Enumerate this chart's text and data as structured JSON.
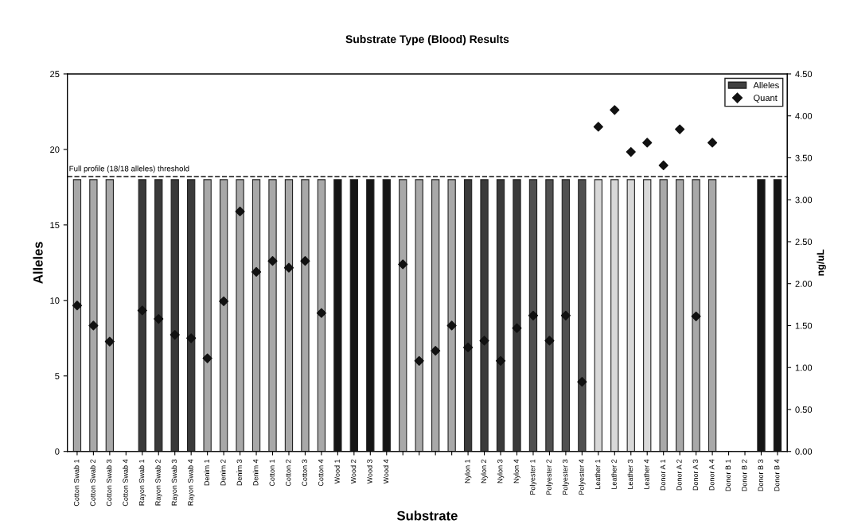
{
  "chart_data": {
    "type": "bar",
    "title": "Substrate Type (Blood) Results",
    "xlabel": "Substrate",
    "ylabel": "Alleles",
    "y2label": "ng/uL",
    "categories": [
      "Cotton Swab 1",
      "Cotton Swab 2",
      "Cotton Swab 3",
      "Cotton Swab 4",
      "Rayon Swab 1",
      "Rayon Swab 2",
      "Rayon Swab 3",
      "Rayon Swab 4",
      "Denim 1",
      "Denim 2",
      "Denim 3",
      "Denim 4",
      "Cotton 1",
      "Cotton 2",
      "Cotton 3",
      "Cotton 4",
      "Wood 1",
      "Wood 2",
      "Wood 3",
      "Wood 4",
      null,
      null,
      null,
      null,
      "Nylon 1",
      "Nylon 2",
      "Nylon 3",
      "Nylon 4",
      "Polyester 1",
      "Polyester 2",
      "Polyester 3",
      "Polyester 4",
      "Leather 1",
      "Leather 2",
      "Leather 3",
      "Leather 4",
      "Donor A 1",
      "Donor A 2",
      "Donor A 3",
      "Donor A 4",
      "Donor B 1",
      "Donor B 2",
      "Donor B 3",
      "Donor B 4"
    ],
    "series": [
      {
        "name": "Alleles",
        "color": "#404040",
        "colors": [
          "#a8a8a8",
          "#a8a8a8",
          "#a8a8a8",
          "#a8a8a8",
          "#3a3a3a",
          "#3a3a3a",
          "#3a3a3a",
          "#3a3a3a",
          "#a8a8a8",
          "#a8a8a8",
          "#a8a8a8",
          "#a8a8a8",
          "#a8a8a8",
          "#a8a8a8",
          "#a8a8a8",
          "#a8a8a8",
          "#151515",
          "#151515",
          "#151515",
          "#151515",
          "#a8a8a8",
          "#a8a8a8",
          "#a8a8a8",
          "#a8a8a8",
          "#3a3a3a",
          "#3a3a3a",
          "#3a3a3a",
          "#3a3a3a",
          "#505050",
          "#505050",
          "#505050",
          "#505050",
          "#d8d8d8",
          "#d8d8d8",
          "#d8d8d8",
          "#d8d8d8",
          "#a8a8a8",
          "#a8a8a8",
          "#a8a8a8",
          "#a8a8a8",
          "#151515",
          "#151515",
          "#151515",
          "#151515"
        ],
        "values": [
          18,
          18,
          18,
          0,
          18,
          18,
          18,
          18,
          18,
          18,
          18,
          18,
          18,
          18,
          18,
          18,
          18,
          18,
          18,
          18,
          18,
          18,
          18,
          18,
          18,
          18,
          18,
          18,
          18,
          18,
          18,
          18,
          18,
          18,
          18,
          18,
          18,
          18,
          18,
          18,
          0,
          0,
          18,
          18
        ]
      },
      {
        "name": "Quant",
        "type": "scatter",
        "axis": "y2",
        "color": "#111111",
        "marker": "diamond",
        "values": [
          1.74,
          1.5,
          1.31,
          null,
          1.68,
          1.58,
          1.39,
          1.35,
          1.11,
          1.79,
          2.86,
          2.14,
          2.27,
          2.19,
          2.27,
          1.65,
          null,
          null,
          null,
          null,
          2.23,
          1.08,
          1.2,
          1.5,
          1.24,
          1.32,
          1.08,
          1.47,
          1.62,
          1.32,
          1.62,
          0.83,
          3.87,
          4.07,
          3.57,
          3.68,
          3.41,
          3.84,
          1.61,
          3.68,
          null,
          null,
          null,
          null
        ]
      }
    ],
    "ylim": [
      0,
      25
    ],
    "yticks": [
      0,
      5,
      10,
      15,
      20,
      25
    ],
    "y2lim": [
      0,
      4.5
    ],
    "y2ticks": [
      {
        "value": 0,
        "label": "0.00"
      },
      {
        "value": 0.5,
        "label": "0.50"
      },
      {
        "value": 1,
        "label": "1.00"
      },
      {
        "value": 1.5,
        "label": "1.50"
      },
      {
        "value": 2,
        "label": "2.00"
      },
      {
        "value": 2.5,
        "label": "2.50"
      },
      {
        "value": 3,
        "label": "3.00"
      },
      {
        "value": 3.5,
        "label": "3.50"
      },
      {
        "value": 4,
        "label": "4.00"
      },
      {
        "value": 4.5,
        "label": "4.50"
      }
    ],
    "ref_lines": [
      {
        "axis": "y",
        "value": 18.2,
        "label": "Full profile (18/18 alleles) threshold",
        "color": "#333333",
        "line_style": "dashed"
      }
    ],
    "legend": "top right",
    "grid": false
  }
}
